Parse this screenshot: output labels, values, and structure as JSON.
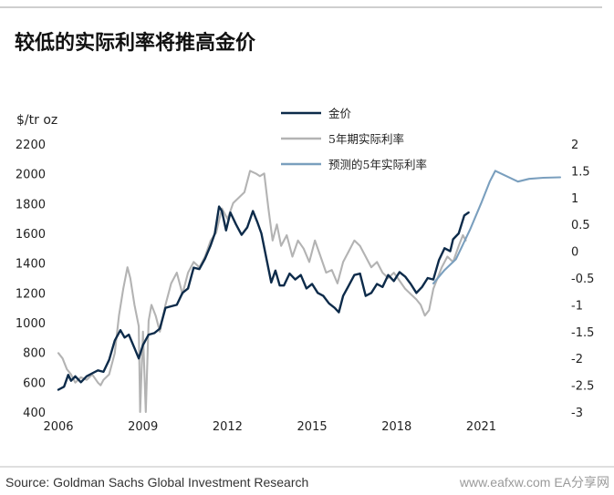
{
  "chart_data": {
    "type": "line",
    "title": "较低的实际利率将推高金价",
    "left_axis": {
      "label": "$/tr oz",
      "ticks": [
        400,
        600,
        800,
        1000,
        1200,
        1400,
        1600,
        1800,
        2000,
        2200
      ],
      "ylim": [
        400,
        2200
      ]
    },
    "right_axis": {
      "label": "",
      "inverted": true,
      "ticks": [
        2,
        1.5,
        1,
        0.5,
        0,
        -0.5,
        -1,
        -1.5,
        -2,
        -2.5,
        -3
      ],
      "ylim": [
        2,
        -3
      ]
    },
    "x_axis": {
      "ticks": [
        "2006",
        "2009",
        "2012",
        "2015",
        "2018",
        "2021"
      ],
      "xlim": [
        2006,
        2023.8
      ]
    },
    "grid": false,
    "legend_position": "top-center",
    "series": [
      {
        "name": "金价",
        "axis": "left",
        "color": "#0d2b4a",
        "points": [
          [
            2006.0,
            550
          ],
          [
            2006.2,
            570
          ],
          [
            2006.35,
            650
          ],
          [
            2006.45,
            610
          ],
          [
            2006.6,
            640
          ],
          [
            2006.8,
            600
          ],
          [
            2007.0,
            640
          ],
          [
            2007.2,
            660
          ],
          [
            2007.4,
            680
          ],
          [
            2007.6,
            670
          ],
          [
            2007.8,
            750
          ],
          [
            2008.0,
            880
          ],
          [
            2008.2,
            950
          ],
          [
            2008.35,
            900
          ],
          [
            2008.5,
            920
          ],
          [
            2008.7,
            830
          ],
          [
            2008.85,
            760
          ],
          [
            2009.0,
            850
          ],
          [
            2009.2,
            920
          ],
          [
            2009.4,
            930
          ],
          [
            2009.6,
            960
          ],
          [
            2009.8,
            1100
          ],
          [
            2010.0,
            1110
          ],
          [
            2010.2,
            1120
          ],
          [
            2010.4,
            1200
          ],
          [
            2010.6,
            1230
          ],
          [
            2010.8,
            1370
          ],
          [
            2011.0,
            1360
          ],
          [
            2011.2,
            1430
          ],
          [
            2011.4,
            1520
          ],
          [
            2011.55,
            1600
          ],
          [
            2011.7,
            1780
          ],
          [
            2011.8,
            1750
          ],
          [
            2011.95,
            1620
          ],
          [
            2012.1,
            1740
          ],
          [
            2012.3,
            1660
          ],
          [
            2012.5,
            1590
          ],
          [
            2012.7,
            1640
          ],
          [
            2012.9,
            1750
          ],
          [
            2013.05,
            1680
          ],
          [
            2013.2,
            1600
          ],
          [
            2013.4,
            1410
          ],
          [
            2013.55,
            1270
          ],
          [
            2013.7,
            1350
          ],
          [
            2013.85,
            1250
          ],
          [
            2014.0,
            1250
          ],
          [
            2014.2,
            1330
          ],
          [
            2014.4,
            1290
          ],
          [
            2014.6,
            1320
          ],
          [
            2014.8,
            1230
          ],
          [
            2015.0,
            1260
          ],
          [
            2015.2,
            1200
          ],
          [
            2015.4,
            1180
          ],
          [
            2015.6,
            1130
          ],
          [
            2015.8,
            1100
          ],
          [
            2015.95,
            1070
          ],
          [
            2016.1,
            1180
          ],
          [
            2016.3,
            1250
          ],
          [
            2016.5,
            1320
          ],
          [
            2016.7,
            1330
          ],
          [
            2016.9,
            1180
          ],
          [
            2017.1,
            1200
          ],
          [
            2017.3,
            1260
          ],
          [
            2017.5,
            1240
          ],
          [
            2017.7,
            1320
          ],
          [
            2017.9,
            1280
          ],
          [
            2018.1,
            1340
          ],
          [
            2018.3,
            1310
          ],
          [
            2018.5,
            1260
          ],
          [
            2018.7,
            1200
          ],
          [
            2018.9,
            1240
          ],
          [
            2019.1,
            1300
          ],
          [
            2019.3,
            1290
          ],
          [
            2019.5,
            1420
          ],
          [
            2019.7,
            1500
          ],
          [
            2019.9,
            1480
          ],
          [
            2020.0,
            1560
          ],
          [
            2020.2,
            1600
          ],
          [
            2020.4,
            1720
          ],
          [
            2020.55,
            1740
          ]
        ]
      },
      {
        "name": "5年期实际利率",
        "axis": "right",
        "color": "#b3b3b3",
        "points": [
          [
            2006.0,
            -1.9
          ],
          [
            2006.15,
            -2.0
          ],
          [
            2006.3,
            -2.2
          ],
          [
            2006.45,
            -2.3
          ],
          [
            2006.6,
            -2.45
          ],
          [
            2006.8,
            -2.35
          ],
          [
            2007.0,
            -2.4
          ],
          [
            2007.2,
            -2.3
          ],
          [
            2007.4,
            -2.45
          ],
          [
            2007.5,
            -2.5
          ],
          [
            2007.6,
            -2.4
          ],
          [
            2007.8,
            -2.3
          ],
          [
            2008.0,
            -1.9
          ],
          [
            2008.15,
            -1.2
          ],
          [
            2008.3,
            -0.7
          ],
          [
            2008.45,
            -0.3
          ],
          [
            2008.55,
            -0.5
          ],
          [
            2008.7,
            -1.0
          ],
          [
            2008.85,
            -1.4
          ],
          [
            2008.9,
            -3.0
          ],
          [
            2009.0,
            -1.5
          ],
          [
            2009.1,
            -3.0
          ],
          [
            2009.2,
            -1.3
          ],
          [
            2009.3,
            -1.0
          ],
          [
            2009.45,
            -1.2
          ],
          [
            2009.6,
            -1.5
          ],
          [
            2009.8,
            -1.0
          ],
          [
            2010.0,
            -0.6
          ],
          [
            2010.2,
            -0.4
          ],
          [
            2010.4,
            -0.8
          ],
          [
            2010.6,
            -0.4
          ],
          [
            2010.8,
            -0.2
          ],
          [
            2011.0,
            -0.3
          ],
          [
            2011.2,
            -0.1
          ],
          [
            2011.4,
            0.2
          ],
          [
            2011.6,
            0.35
          ],
          [
            2011.8,
            0.8
          ],
          [
            2012.0,
            0.6
          ],
          [
            2012.2,
            0.9
          ],
          [
            2012.4,
            1.0
          ],
          [
            2012.6,
            1.1
          ],
          [
            2012.8,
            1.5
          ],
          [
            2013.0,
            1.45
          ],
          [
            2013.15,
            1.4
          ],
          [
            2013.3,
            1.45
          ],
          [
            2013.45,
            0.8
          ],
          [
            2013.6,
            0.2
          ],
          [
            2013.75,
            0.5
          ],
          [
            2013.9,
            0.1
          ],
          [
            2014.1,
            0.3
          ],
          [
            2014.3,
            -0.1
          ],
          [
            2014.5,
            0.2
          ],
          [
            2014.7,
            0.05
          ],
          [
            2014.9,
            -0.2
          ],
          [
            2015.1,
            0.2
          ],
          [
            2015.3,
            -0.1
          ],
          [
            2015.5,
            -0.4
          ],
          [
            2015.7,
            -0.35
          ],
          [
            2015.9,
            -0.6
          ],
          [
            2016.1,
            -0.2
          ],
          [
            2016.3,
            0.0
          ],
          [
            2016.5,
            0.2
          ],
          [
            2016.7,
            0.1
          ],
          [
            2016.9,
            -0.1
          ],
          [
            2017.1,
            -0.3
          ],
          [
            2017.3,
            -0.2
          ],
          [
            2017.5,
            -0.4
          ],
          [
            2017.7,
            -0.5
          ],
          [
            2017.9,
            -0.4
          ],
          [
            2018.1,
            -0.55
          ],
          [
            2018.3,
            -0.7
          ],
          [
            2018.5,
            -0.8
          ],
          [
            2018.7,
            -0.9
          ],
          [
            2018.85,
            -1.0
          ],
          [
            2019.0,
            -1.2
          ],
          [
            2019.15,
            -1.1
          ],
          [
            2019.3,
            -0.7
          ],
          [
            2019.45,
            -0.5
          ],
          [
            2019.6,
            -0.3
          ],
          [
            2019.8,
            -0.1
          ],
          [
            2020.0,
            -0.2
          ],
          [
            2020.2,
            0.1
          ],
          [
            2020.35,
            0.3
          ],
          [
            2020.45,
            0.2
          ]
        ]
      },
      {
        "name": "预测的5年实际利率",
        "axis": "right",
        "color": "#7a9fbe",
        "points": [
          [
            2019.3,
            -0.6
          ],
          [
            2019.7,
            -0.35
          ],
          [
            2020.1,
            -0.15
          ],
          [
            2020.6,
            0.4
          ],
          [
            2021.0,
            0.9
          ],
          [
            2021.3,
            1.3
          ],
          [
            2021.5,
            1.5
          ],
          [
            2021.9,
            1.4
          ],
          [
            2022.3,
            1.3
          ],
          [
            2022.7,
            1.35
          ],
          [
            2023.2,
            1.37
          ],
          [
            2023.8,
            1.38
          ]
        ]
      }
    ]
  },
  "footer": {
    "source": "Source: Goldman Sachs Global Investment Research",
    "watermark": "www.eafxw.com   EA分享网"
  }
}
